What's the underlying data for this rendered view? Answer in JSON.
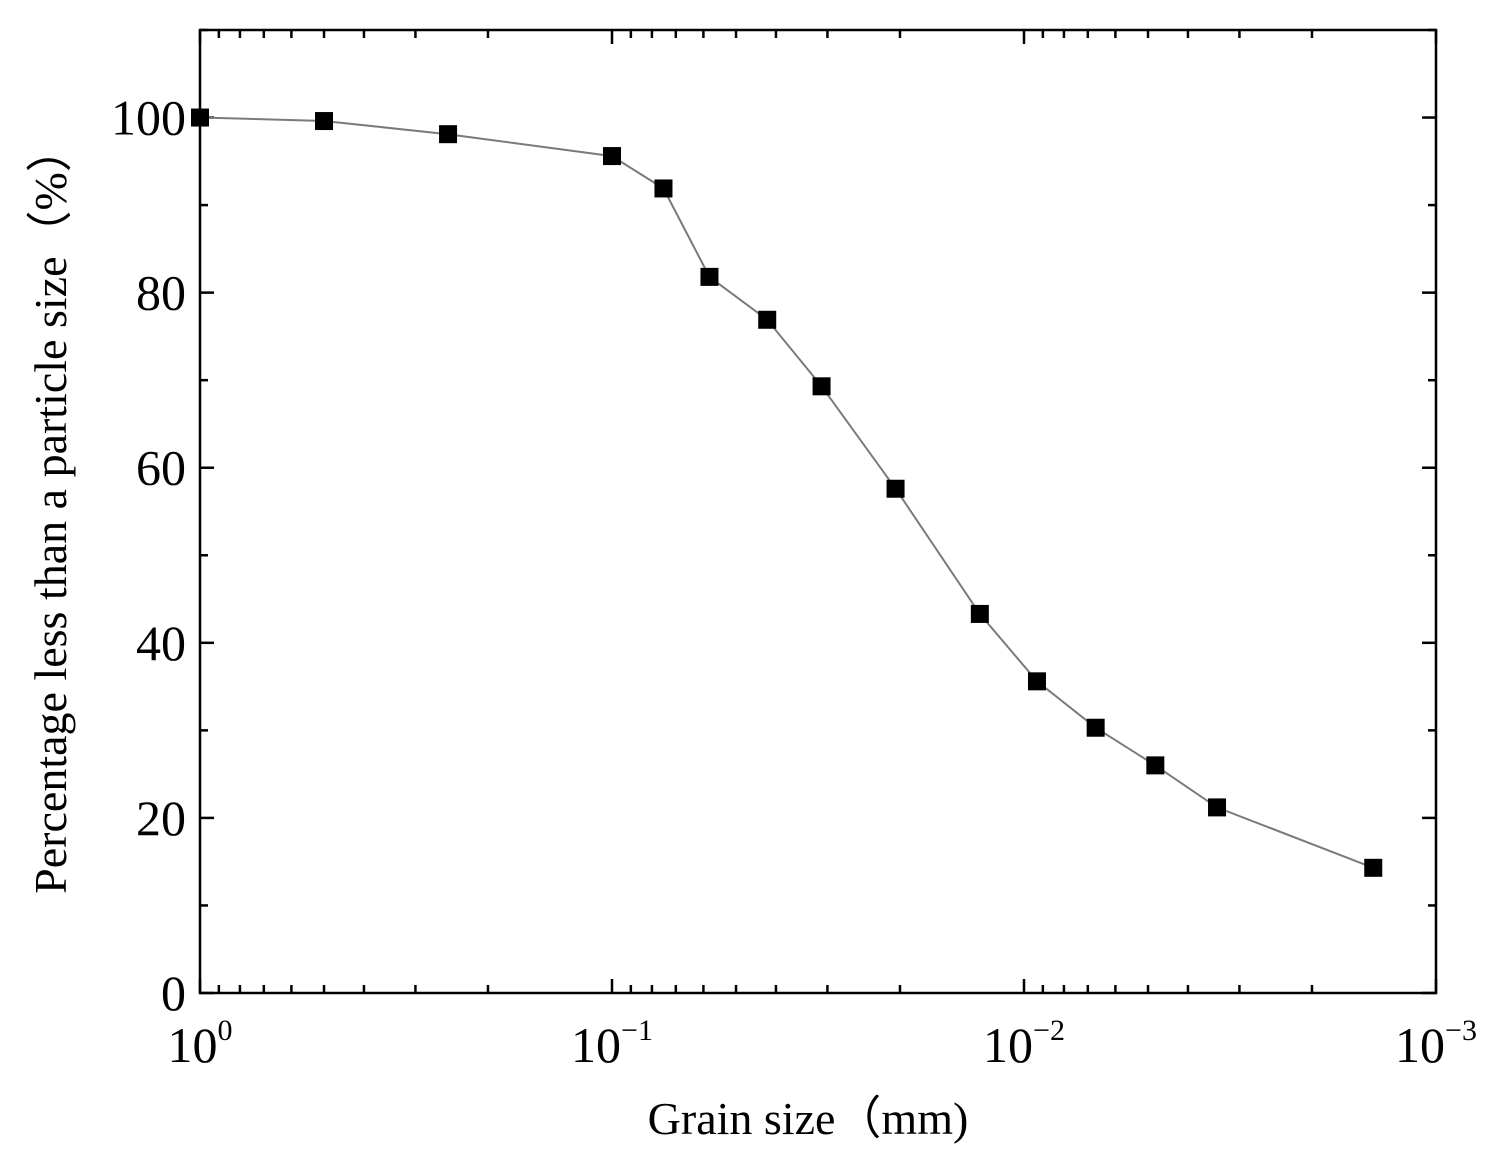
{
  "chart_data": {
    "type": "scatter",
    "title": "",
    "xlabel": "Grain size（mm)",
    "ylabel": "Percentage less than a particle size（%）",
    "x_scale": "log",
    "x_reversed": true,
    "xlim": [
      1,
      0.001
    ],
    "ylim": [
      0,
      110
    ],
    "x_ticks": [
      1,
      0.1,
      0.01,
      0.001
    ],
    "x_tick_labels": [
      {
        "base": "10",
        "exp": "0"
      },
      {
        "base": "10",
        "exp": "−1"
      },
      {
        "base": "10",
        "exp": "−2"
      },
      {
        "base": "10",
        "exp": "−3"
      }
    ],
    "y_ticks": [
      0,
      20,
      40,
      60,
      80,
      100
    ],
    "y_tick_labels": [
      "0",
      "20",
      "40",
      "60",
      "80",
      "100"
    ],
    "grid": false,
    "line_color": "#7a7a7a",
    "marker_color": "#000000",
    "marker": "square",
    "series": [
      {
        "x": [
          1.0,
          0.5,
          0.25,
          0.1,
          0.075,
          0.058,
          0.042,
          0.031,
          0.0205,
          0.0128,
          0.0093,
          0.0067,
          0.0048,
          0.0034,
          0.00142
        ],
        "values": [
          100,
          99.6,
          98.1,
          95.6,
          91.9,
          81.8,
          76.9,
          69.3,
          57.6,
          43.3,
          35.6,
          30.3,
          26.0,
          21.2,
          14.3
        ]
      }
    ]
  }
}
